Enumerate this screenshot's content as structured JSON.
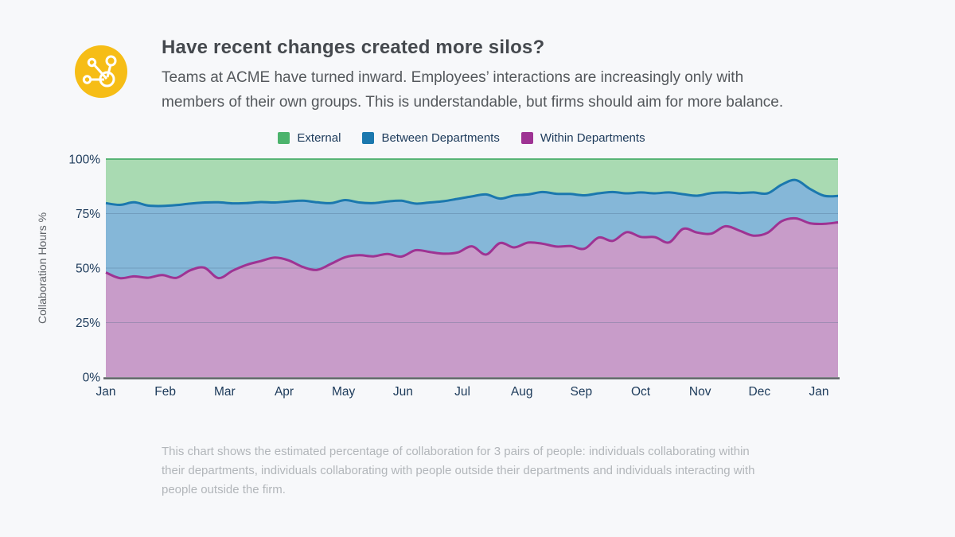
{
  "page": {
    "background": "#f7f8fa"
  },
  "header": {
    "icon": "network-icon",
    "icon_bg": "#f6bd16",
    "title": "Have recent changes created more silos?",
    "subtitle_lines": [
      "Teams at ACME have turned inward. Employees’ interactions are increasingly only with",
      "members of their own groups. This is understandable, but firms should aim for more balance."
    ]
  },
  "footnote_lines": [
    "This chart shows the estimated percentage of collaboration for 3 pairs of people: individuals collaborating within",
    "their departments, individuals collaborating with people outside their departments and individuals interacting with",
    "people outside the firm."
  ],
  "chart_data": {
    "type": "area",
    "stacked": true,
    "stack_order": "bottom-to-top",
    "sampling": "weekly",
    "title": "",
    "xlabel": "",
    "ylabel": "Collaboration Hours %",
    "ylim": [
      0,
      100
    ],
    "grid": true,
    "legend_position": "top",
    "y_ticks": [
      "0%",
      "25%",
      "50%",
      "75%",
      "100%"
    ],
    "y_tick_values": [
      0,
      25,
      50,
      75,
      100
    ],
    "x_ticks": [
      "Jan",
      "Feb",
      "Mar",
      "Apr",
      "May",
      "Jun",
      "Jul",
      "Aug",
      "Sep",
      "Oct",
      "Nov",
      "Dec",
      "Jan"
    ],
    "legend": [
      {
        "label": "External",
        "color": "#4cb36c"
      },
      {
        "label": "Between Departments",
        "color": "#1b78ae"
      },
      {
        "label": "Within Departments",
        "color": "#9e3393"
      }
    ],
    "colors": {
      "axis_line": "#5c6064",
      "grid_line": "rgba(71,101,130,0.30)",
      "tick_text": "#1c3a5a",
      "ylabel_text": "#5f6368",
      "external_top_line": "#57b475"
    },
    "series": [
      {
        "name": "Within Departments",
        "color": "#9e3393",
        "fill": "#c89cc9",
        "values": [
          48.0,
          45.4,
          46.2,
          45.6,
          46.8,
          45.5,
          49.0,
          50.2,
          45.4,
          48.8,
          51.5,
          53.2,
          54.8,
          53.5,
          50.5,
          49.2,
          52.0,
          55.0,
          55.9,
          55.4,
          56.5,
          55.3,
          58.2,
          57.4,
          56.6,
          57.2,
          60.0,
          56.2,
          61.5,
          59.5,
          61.7,
          61.2,
          59.9,
          60.1,
          58.9,
          64.0,
          62.5,
          66.5,
          64.3,
          64.2,
          61.8,
          68.0,
          66.3,
          65.8,
          69.2,
          67.2,
          64.9,
          66.2,
          71.5,
          72.8,
          70.6,
          70.3,
          71.0
        ]
      },
      {
        "name": "Between Departments",
        "color": "#1b78ae",
        "fill": "#85b7d8",
        "values": [
          31.8,
          33.6,
          34.0,
          33.1,
          31.7,
          33.4,
          30.6,
          29.9,
          34.8,
          30.9,
          28.3,
          27.1,
          25.3,
          27.1,
          30.4,
          31.0,
          27.8,
          26.2,
          24.2,
          24.4,
          24.1,
          25.6,
          21.4,
          22.7,
          24.1,
          24.6,
          22.9,
          27.6,
          20.4,
          23.8,
          22.1,
          23.7,
          24.2,
          23.9,
          24.5,
          20.3,
          22.4,
          17.8,
          20.4,
          20.1,
          22.9,
          15.9,
          16.9,
          18.6,
          15.5,
          17.2,
          19.8,
          18.1,
          16.8,
          17.6,
          15.8,
          12.9,
          12.1
        ]
      },
      {
        "name": "External",
        "color": "#4cb36c",
        "fill": "#a9dab2",
        "values": [
          20.2,
          21.0,
          19.8,
          21.3,
          21.5,
          21.1,
          20.4,
          19.9,
          19.8,
          20.3,
          20.2,
          19.7,
          19.9,
          19.4,
          19.1,
          19.8,
          20.2,
          18.8,
          19.9,
          20.2,
          19.4,
          19.1,
          20.4,
          19.9,
          19.3,
          18.2,
          17.1,
          16.2,
          18.1,
          16.7,
          16.2,
          15.1,
          15.9,
          16.0,
          16.6,
          15.7,
          15.1,
          15.7,
          15.3,
          15.7,
          15.3,
          16.1,
          16.8,
          15.6,
          15.3,
          15.6,
          15.3,
          15.7,
          11.7,
          9.6,
          13.6,
          16.8,
          16.9
        ]
      }
    ]
  }
}
